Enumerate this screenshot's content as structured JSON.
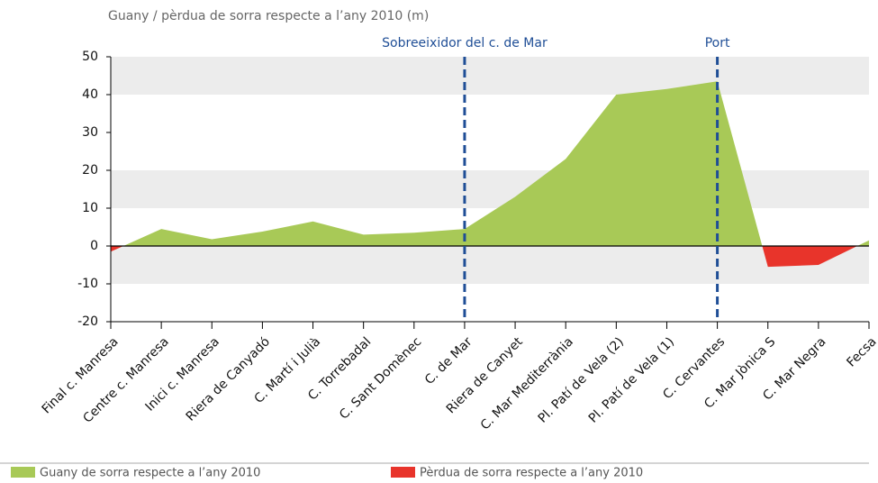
{
  "chart_data": {
    "type": "area",
    "title": "Guany / pèrdua de sorra respecte a l’any 2010 (m)",
    "categories": [
      "Final c. Manresa",
      "Centre  c. Manresa",
      "Inici c. Manresa",
      "Riera de Canyadó",
      "C. Martí i Julià",
      "C. Torrebadal",
      "C. Sant Domènec",
      "C. de Mar",
      "Riera de Canyet",
      "C. Mar Mediterrània",
      "Pl. Patí de Vela (2)",
      "Pl. Patí de Vela (1)",
      "C. Cervantes",
      "C. Mar Jònica S",
      "C. Mar Negra",
      "Fecsa"
    ],
    "values": [
      -1.5,
      4.5,
      1.8,
      3.8,
      6.5,
      3,
      3.5,
      4.5,
      13,
      23,
      40,
      41.5,
      43.5,
      -5.5,
      -5,
      1.5
    ],
    "ylim": [
      -20,
      50
    ],
    "yticks": [
      -20,
      -10,
      0,
      10,
      20,
      30,
      40,
      50
    ],
    "bands": [
      [
        40,
        50
      ],
      [
        10,
        20
      ],
      [
        -10,
        0
      ]
    ],
    "legend": [
      {
        "label": "Guany de sorra respecte a l’any 2010",
        "color": "#a8c957"
      },
      {
        "label": "Pèrdua de sorra respecte a l’any 2010",
        "color": "#e8342b"
      }
    ],
    "annotations": [
      {
        "label": "Sobreeixidor del c. de Mar",
        "category": "C. de Mar",
        "color": "#1f4e96"
      },
      {
        "label": "Port",
        "category": "C. Cervantes",
        "color": "#1f4e96"
      }
    ]
  }
}
